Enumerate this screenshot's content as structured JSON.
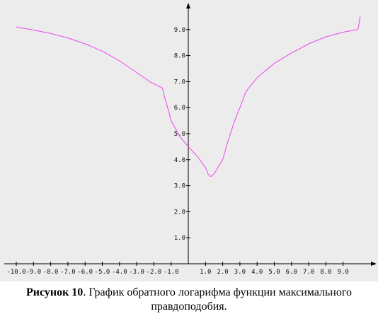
{
  "caption": {
    "label": "Рисунок 10",
    "text": ". График обратного логарифма функции максимального",
    "text_line2": "правдоподобия."
  },
  "chart_data": {
    "type": "line",
    "xlim": [
      -11.0,
      11.0
    ],
    "ylim": [
      0.0,
      10.0
    ],
    "grid": false,
    "x_tick_labels": [
      "-10.0",
      "-9.0",
      "-8.0",
      "-7.0",
      "-6.0",
      "-5.0",
      "-4.0",
      "-3.0",
      "-2.0",
      "-1.0",
      "1.0",
      "2.0",
      "3.0",
      "4.0",
      "5.0",
      "6.0",
      "7.0",
      "8.0",
      "9.0"
    ],
    "x_tick_values": [
      -10,
      -9,
      -8,
      -7,
      -6,
      -5,
      -4,
      -3,
      -2,
      -1,
      1,
      2,
      3,
      4,
      5,
      6,
      7,
      8,
      9
    ],
    "y_tick_labels": [
      "1.0",
      "2.0",
      "3.0",
      "4.0",
      "5.0",
      "6.0",
      "7.0",
      "8.0",
      "9.0"
    ],
    "y_tick_values": [
      1,
      2,
      3,
      4,
      5,
      6,
      7,
      8,
      9
    ],
    "series": [
      {
        "color": "#ee44ee",
        "x": [
          -10.0,
          -9.0,
          -8.0,
          -7.0,
          -6.0,
          -5.0,
          -4.0,
          -3.0,
          -2.2,
          -1.5,
          -1.4,
          -1.2,
          -1.0,
          -0.5,
          0.0,
          0.5,
          1.0,
          1.15,
          1.3,
          1.5,
          2.0,
          2.3,
          2.7,
          3.0,
          3.2,
          3.3,
          3.5,
          4.0,
          5.0,
          6.0,
          7.0,
          8.0,
          9.0,
          9.85,
          9.9,
          9.95,
          10.0
        ],
        "y": [
          9.1,
          8.98,
          8.85,
          8.68,
          8.45,
          8.17,
          7.8,
          7.35,
          6.98,
          6.75,
          6.45,
          6.0,
          5.5,
          4.9,
          4.5,
          4.15,
          3.7,
          3.45,
          3.35,
          3.45,
          4.0,
          4.7,
          5.5,
          6.0,
          6.35,
          6.55,
          6.75,
          7.15,
          7.7,
          8.1,
          8.45,
          8.72,
          8.9,
          9.0,
          9.1,
          9.35,
          9.5
        ]
      }
    ]
  }
}
